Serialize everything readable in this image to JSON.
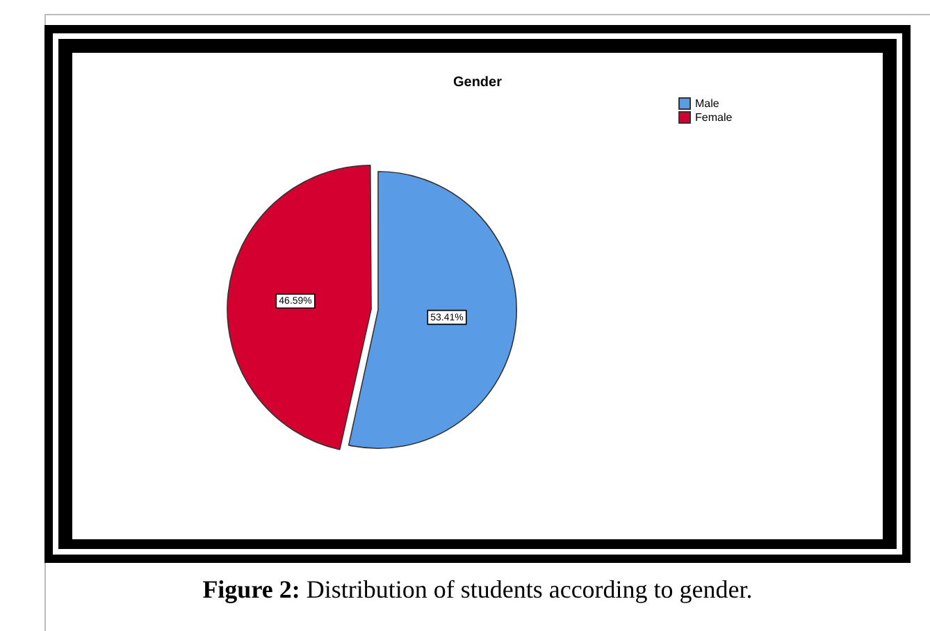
{
  "chart_data": {
    "type": "pie",
    "title": "Gender",
    "categories": [
      "Male",
      "Female"
    ],
    "values": [
      53.41,
      46.59
    ],
    "colors": [
      "#5a9be6",
      "#d4002f"
    ],
    "value_labels": [
      "53.41%",
      "46.59%"
    ],
    "legend": "top right",
    "annotations": [
      "Figure 2: Distribution of students according to gender."
    ]
  }
}
